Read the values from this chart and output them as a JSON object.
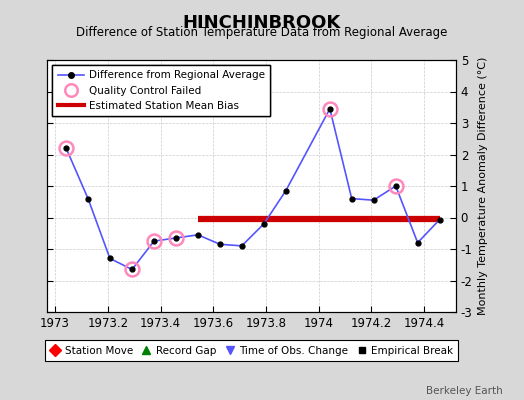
{
  "title": "HINCHINBROOK",
  "subtitle": "Difference of Station Temperature Data from Regional Average",
  "ylabel_right": "Monthly Temperature Anomaly Difference (°C)",
  "credit": "Berkeley Earth",
  "x_pts": [
    1973.042,
    1973.125,
    1973.208,
    1973.292,
    1973.375,
    1973.458,
    1973.542,
    1973.625,
    1973.708,
    1973.792,
    1973.875,
    1974.042,
    1974.125,
    1974.208,
    1974.292,
    1974.375,
    1974.458
  ],
  "y_pts": [
    2.2,
    0.6,
    -1.3,
    -1.65,
    -0.75,
    -0.65,
    -0.55,
    -0.85,
    -0.9,
    -0.2,
    0.85,
    3.45,
    0.6,
    0.55,
    1.0,
    -0.8,
    -0.07
  ],
  "qc_indices": [
    0,
    3,
    4,
    5,
    11,
    14
  ],
  "bias_x_start": 1973.542,
  "bias_x_end": 1974.458,
  "bias_y": -0.05,
  "xlim": [
    1972.97,
    1974.52
  ],
  "ylim": [
    -3,
    5
  ],
  "xticks": [
    1973,
    1973.2,
    1973.4,
    1973.6,
    1973.8,
    1974,
    1974.2,
    1974.4
  ],
  "yticks": [
    -3,
    -2,
    -1,
    0,
    1,
    2,
    3,
    4,
    5
  ],
  "xtick_labels": [
    "1973",
    "1973.2",
    "1973.4",
    "1973.6",
    "1973.8",
    "1974",
    "1974.2",
    "1974.4"
  ],
  "ytick_labels": [
    "-3",
    "-2",
    "-1",
    "0",
    "1",
    "2",
    "3",
    "4",
    "5"
  ],
  "line_color": "#5555ff",
  "qc_color": "#ff88bb",
  "bias_color": "#cc0000",
  "bg_color": "#d8d8d8",
  "plot_bg_color": "#ffffff"
}
